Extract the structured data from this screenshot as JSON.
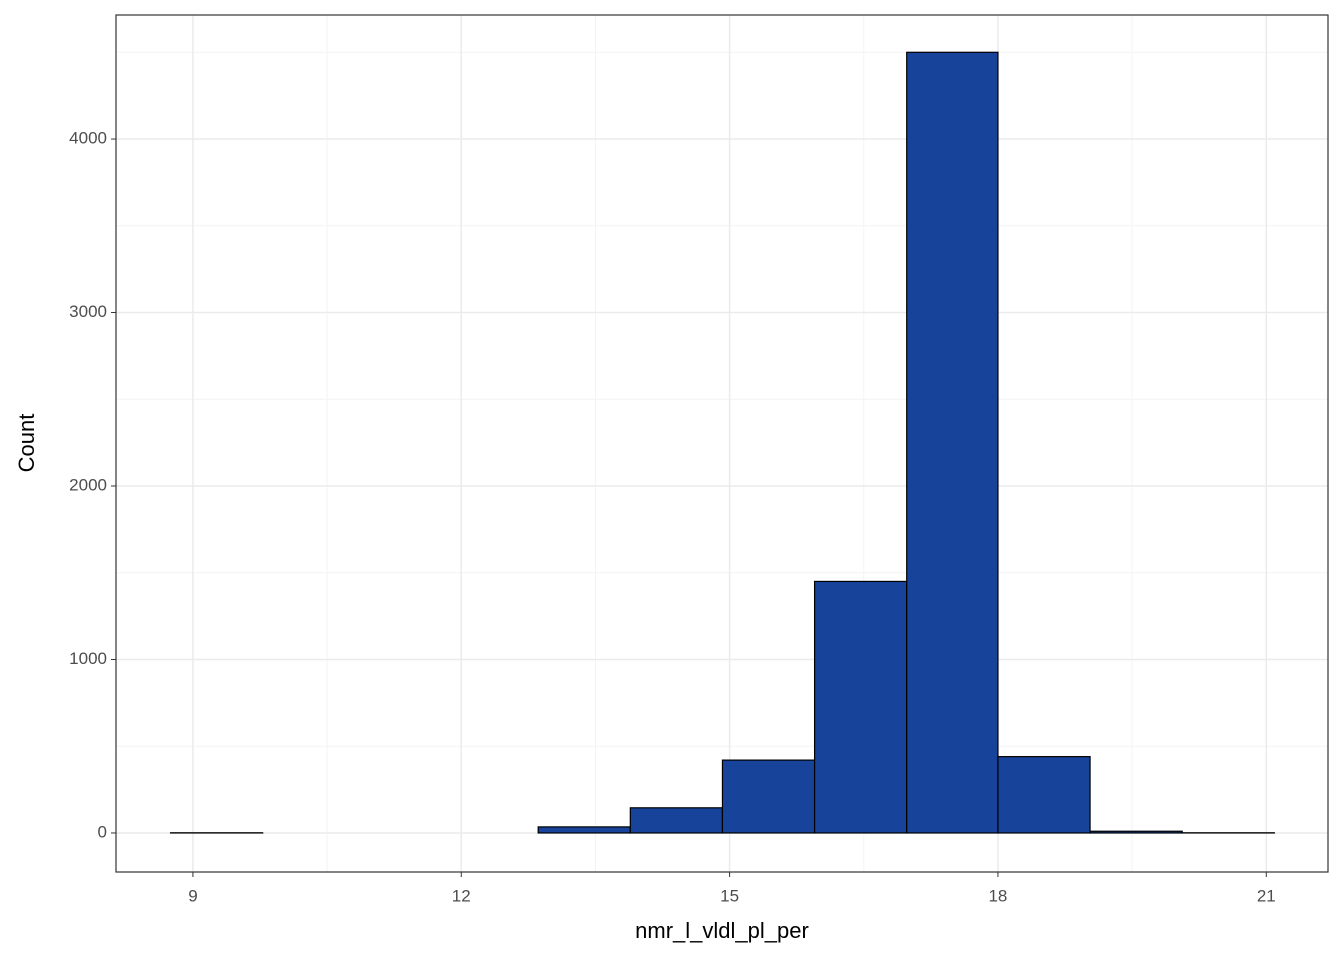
{
  "chart_data": {
    "type": "histogram",
    "x_label": "nmr_l_vldl_pl_per",
    "y_label": "Count",
    "bins": [
      8.75,
      9.78,
      10.81,
      11.84,
      12.86,
      13.89,
      14.92,
      15.95,
      16.98,
      18.0,
      19.03,
      20.06,
      21.09
    ],
    "values": [
      1,
      0,
      0,
      0,
      35,
      145,
      420,
      1450,
      4500,
      440,
      10,
      1
    ],
    "color": "#17439b",
    "edge_color": "#000000",
    "xlim": [
      8.14,
      21.69
    ],
    "ylim": [
      -225,
      4715
    ],
    "xticks": [
      9,
      12,
      15,
      18,
      21
    ],
    "yticks": [
      0,
      1000,
      2000,
      3000,
      4000
    ],
    "grid": true,
    "minor_grid": true
  }
}
